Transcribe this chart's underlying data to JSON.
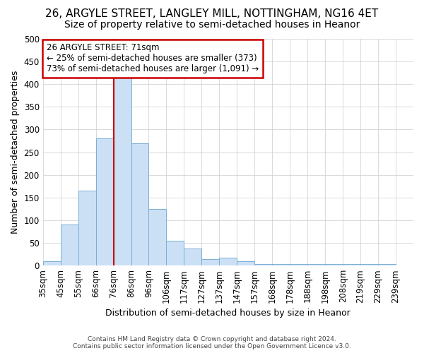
{
  "title1": "26, ARGYLE STREET, LANGLEY MILL, NOTTINGHAM, NG16 4ET",
  "title2": "Size of property relative to semi-detached houses in Heanor",
  "xlabel": "Distribution of semi-detached houses by size in Heanor",
  "ylabel": "Number of semi-detached properties",
  "bar_values": [
    10,
    90,
    165,
    280,
    415,
    270,
    125,
    55,
    38,
    15,
    17,
    10,
    3,
    3,
    3,
    3,
    3,
    3,
    3,
    3
  ],
  "categories": [
    "35sqm",
    "45sqm",
    "55sqm",
    "66sqm",
    "76sqm",
    "86sqm",
    "96sqm",
    "106sqm",
    "117sqm",
    "127sqm",
    "137sqm",
    "147sqm",
    "157sqm",
    "168sqm",
    "178sqm",
    "188sqm",
    "198sqm",
    "208sqm",
    "219sqm",
    "229sqm",
    "239sqm"
  ],
  "bar_color": "#cce0f5",
  "bar_edge_color": "#7aaed6",
  "vline_x": 4.0,
  "vline_color": "#cc0000",
  "annotation_text": "26 ARGYLE STREET: 71sqm\n← 25% of semi-detached houses are smaller (373)\n73% of semi-detached houses are larger (1,091) →",
  "annotation_box_color": "#ffffff",
  "annotation_box_edge": "#cc0000",
  "ylim": [
    0,
    500
  ],
  "yticks": [
    0,
    50,
    100,
    150,
    200,
    250,
    300,
    350,
    400,
    450,
    500
  ],
  "xlim_max": 21,
  "background_color": "#ffffff",
  "grid_color": "#cccccc",
  "footer1": "Contains HM Land Registry data © Crown copyright and database right 2024.",
  "footer2": "Contains public sector information licensed under the Open Government Licence v3.0.",
  "title1_fontsize": 11,
  "title2_fontsize": 10,
  "axis_fontsize": 9,
  "tick_fontsize": 8.5,
  "annotation_fontsize": 8.5
}
